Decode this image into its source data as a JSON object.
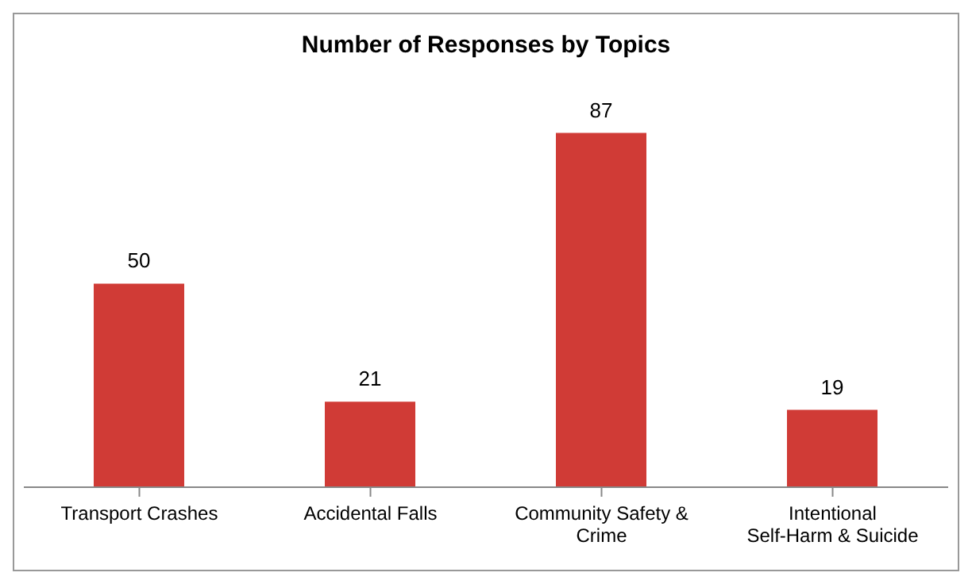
{
  "chart_data": {
    "type": "bar",
    "title": "Number of Responses by Topics",
    "categories": [
      "Transport Crashes",
      "Accidental Falls",
      "Community Safety & Crime",
      "Intentional Self-Harm & Suicide"
    ],
    "values": [
      50,
      21,
      87,
      19
    ],
    "color": "#d03b36",
    "data_labels": true,
    "tick_labels": "x"
  }
}
